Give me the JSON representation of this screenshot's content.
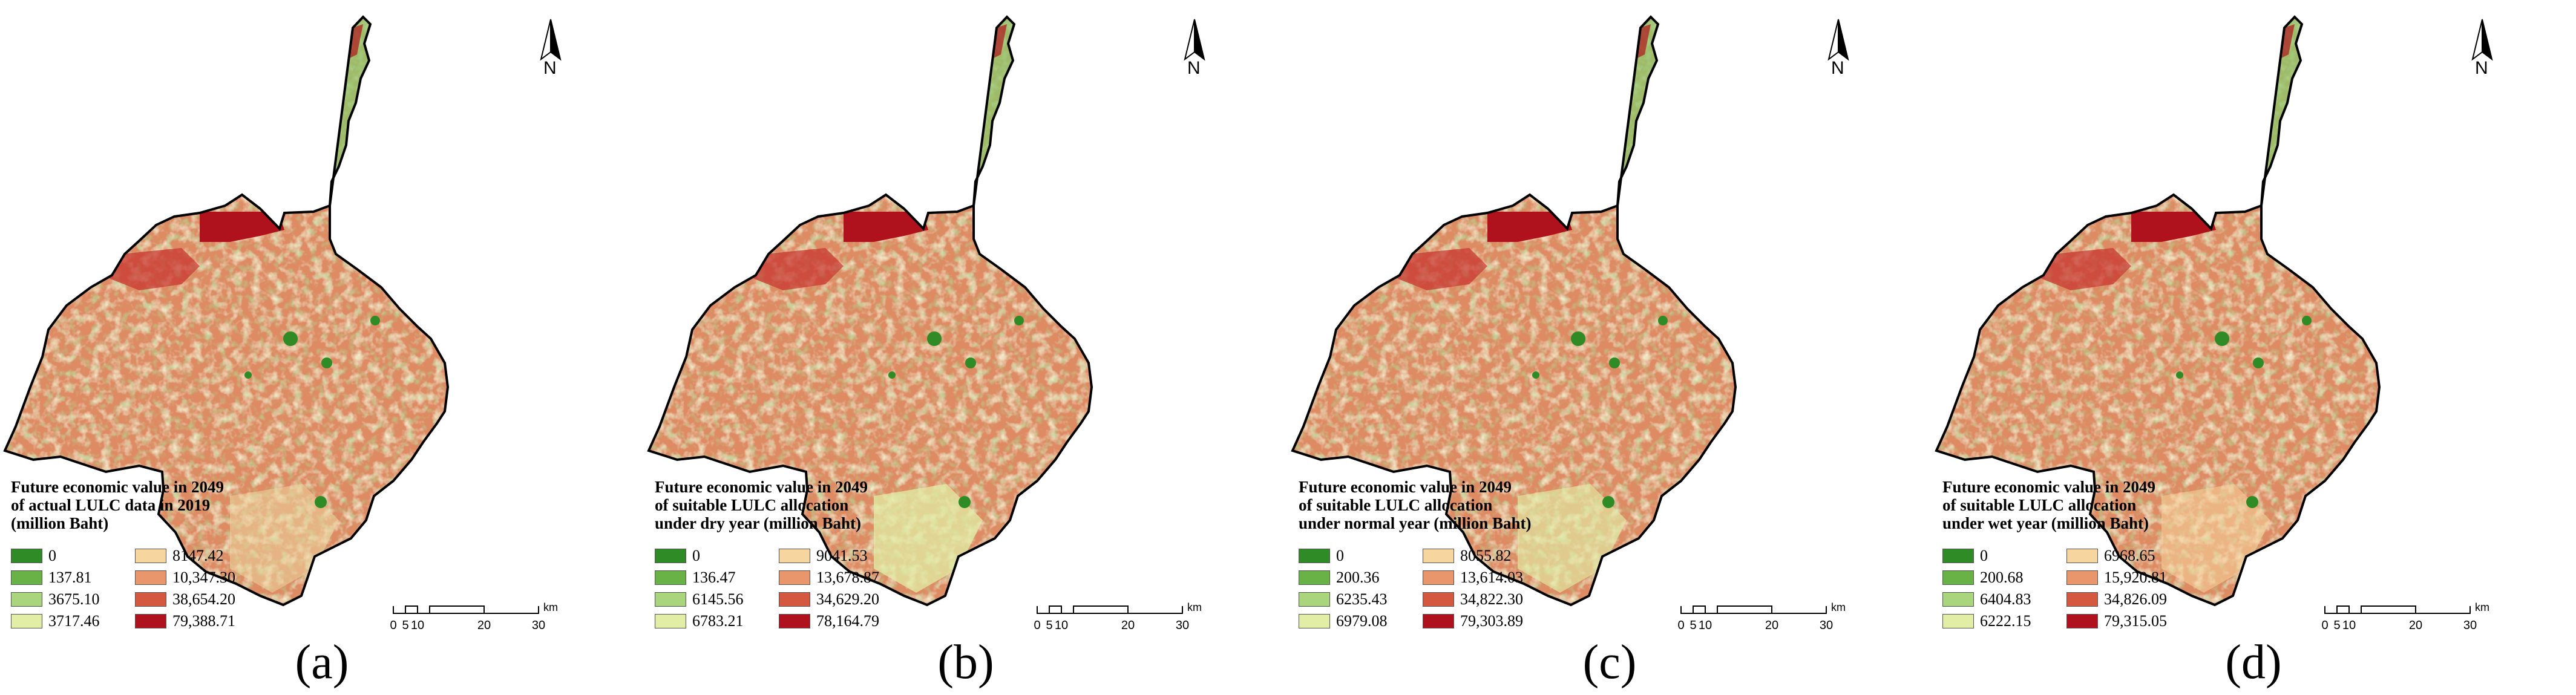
{
  "north_arrow": {
    "label": "N"
  },
  "scale_bar": {
    "ticks": [
      "0",
      "5",
      "10",
      "20",
      "30"
    ],
    "unit": "km"
  },
  "legend_colors": [
    "#2e8b25",
    "#69b246",
    "#a9d67c",
    "#e2eda6",
    "#f7d59e",
    "#e9966c",
    "#d4583f",
    "#b0121d"
  ],
  "panels": [
    {
      "label": "(a)",
      "legend_title": [
        "Future economic value in 2049",
        "of actual LULC data in 2019",
        "(million Baht)"
      ],
      "legend_values": [
        "0",
        "137.81",
        "3675.10",
        "3717.46",
        "8147.42",
        "10,347.30",
        "38,654.20",
        "79,388.71"
      ]
    },
    {
      "label": "(b)",
      "legend_title": [
        "Future economic value in 2049",
        "of suitable LULC allocation",
        "under dry year (million Baht)"
      ],
      "legend_values": [
        "0",
        "136.47",
        "6145.56",
        "6783.21",
        "9041.53",
        "13,678.87",
        "34,629.20",
        "78,164.79"
      ]
    },
    {
      "label": "(c)",
      "legend_title": [
        "Future economic value in 2049",
        "of suitable LULC allocation",
        "under normal year (million Baht)"
      ],
      "legend_values": [
        "0",
        "200.36",
        "6235.43",
        "6979.08",
        "8055.82",
        "13,614.03",
        "34,822.30",
        "79,303.89"
      ]
    },
    {
      "label": "(d)",
      "legend_title": [
        "Future economic value in 2049",
        "of suitable LULC allocation",
        "under wet year (million Baht)"
      ],
      "legend_values": [
        "0",
        "200.68",
        "6404.83",
        "6222.15",
        "6968.65",
        "15,920.81",
        "34,826.09",
        "79,315.05"
      ]
    }
  ]
}
